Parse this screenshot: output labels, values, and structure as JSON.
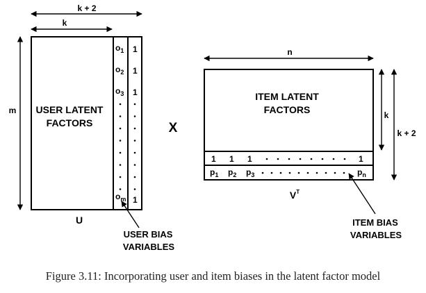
{
  "matrix_u": {
    "body_label_line1": "USER LATENT",
    "body_label_line2": "FACTORS",
    "name": "U",
    "width_inner": "k",
    "width_total": "k + 2",
    "height": "m",
    "bias_column": {
      "entries": [
        {
          "base": "o",
          "sub": "1"
        },
        {
          "base": "o",
          "sub": "2"
        },
        {
          "base": "o",
          "sub": "3"
        },
        {
          "base": "o",
          "sub": "m"
        }
      ],
      "dot": "."
    },
    "ones_column": {
      "value": "1"
    },
    "callout_line1": "USER BIAS",
    "callout_line2": "VARIABLES"
  },
  "operator": "X",
  "matrix_v": {
    "body_label_line1": "ITEM LATENT",
    "body_label_line2": "FACTORS",
    "name_base": "V",
    "name_sup": "T",
    "width": "n",
    "height_inner": "k",
    "height_total": "k + 2",
    "ones_row": {
      "value": "1"
    },
    "bias_row": {
      "entries": [
        {
          "base": "p",
          "sub": "1"
        },
        {
          "base": "p",
          "sub": "2"
        },
        {
          "base": "p",
          "sub": "3"
        },
        {
          "base": "p",
          "sub": "n"
        }
      ]
    },
    "callout_line1": "ITEM BIAS",
    "callout_line2": "VARIABLES"
  },
  "caption": "Figure 3.11: Incorporating user and item biases in the latent factor model"
}
